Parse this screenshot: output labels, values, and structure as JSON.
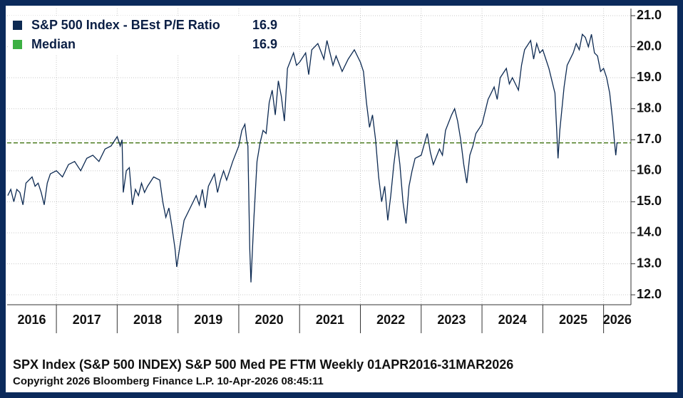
{
  "chart_data": {
    "type": "line",
    "series": [
      {
        "name": "S&P 500 Index - BEst P/E Ratio",
        "color": "#0d2a52",
        "last_value": 16.9,
        "x": [
          2016.2,
          2016.25,
          2016.3,
          2016.35,
          2016.4,
          2016.45,
          2016.5,
          2016.6,
          2016.65,
          2016.7,
          2016.75,
          2016.8,
          2016.85,
          2016.9,
          2017.0,
          2017.1,
          2017.2,
          2017.3,
          2017.4,
          2017.5,
          2017.6,
          2017.7,
          2017.8,
          2017.9,
          2018.0,
          2018.05,
          2018.08,
          2018.1,
          2018.15,
          2018.2,
          2018.25,
          2018.3,
          2018.35,
          2018.4,
          2018.45,
          2018.5,
          2018.6,
          2018.7,
          2018.75,
          2018.8,
          2018.85,
          2018.9,
          2018.95,
          2018.98,
          2019.05,
          2019.1,
          2019.2,
          2019.3,
          2019.35,
          2019.4,
          2019.45,
          2019.5,
          2019.6,
          2019.65,
          2019.7,
          2019.75,
          2019.8,
          2019.9,
          2020.0,
          2020.05,
          2020.1,
          2020.13,
          2020.15,
          2020.18,
          2020.2,
          2020.25,
          2020.3,
          2020.35,
          2020.4,
          2020.45,
          2020.5,
          2020.55,
          2020.6,
          2020.65,
          2020.7,
          2020.75,
          2020.8,
          2020.9,
          2020.95,
          2021.0,
          2021.1,
          2021.15,
          2021.2,
          2021.3,
          2021.4,
          2021.45,
          2021.55,
          2021.6,
          2021.7,
          2021.8,
          2021.9,
          2022.0,
          2022.05,
          2022.1,
          2022.15,
          2022.2,
          2022.25,
          2022.3,
          2022.35,
          2022.4,
          2022.45,
          2022.5,
          2022.55,
          2022.6,
          2022.65,
          2022.7,
          2022.75,
          2022.8,
          2022.85,
          2022.9,
          2023.0,
          2023.1,
          2023.15,
          2023.2,
          2023.3,
          2023.35,
          2023.4,
          2023.5,
          2023.55,
          2023.6,
          2023.65,
          2023.7,
          2023.75,
          2023.8,
          2023.85,
          2023.9,
          2024.0,
          2024.1,
          2024.2,
          2024.25,
          2024.3,
          2024.4,
          2024.45,
          2024.5,
          2024.6,
          2024.65,
          2024.7,
          2024.8,
          2024.85,
          2024.9,
          2024.95,
          2025.0,
          2025.05,
          2025.1,
          2025.2,
          2025.25,
          2025.28,
          2025.35,
          2025.4,
          2025.5,
          2025.55,
          2025.6,
          2025.65,
          2025.7,
          2025.75,
          2025.8,
          2025.85,
          2025.9,
          2025.95,
          2026.0,
          2026.05,
          2026.1,
          2026.15,
          2026.18,
          2026.2,
          2026.22,
          2026.24
        ],
        "values": [
          15.2,
          15.4,
          15.0,
          15.4,
          15.3,
          14.9,
          15.6,
          15.8,
          15.5,
          15.6,
          15.3,
          14.9,
          15.6,
          15.9,
          16.0,
          15.8,
          16.2,
          16.3,
          16.0,
          16.4,
          16.5,
          16.3,
          16.7,
          16.8,
          17.1,
          16.8,
          17.0,
          15.3,
          16.0,
          16.1,
          14.9,
          15.4,
          15.2,
          15.6,
          15.3,
          15.5,
          15.8,
          15.7,
          15.0,
          14.5,
          14.8,
          14.2,
          13.5,
          12.9,
          13.8,
          14.4,
          14.8,
          15.2,
          14.9,
          15.4,
          14.8,
          15.5,
          15.9,
          15.3,
          15.7,
          16.0,
          15.7,
          16.3,
          16.8,
          17.3,
          17.5,
          17.0,
          16.8,
          13.5,
          12.4,
          14.5,
          16.3,
          16.9,
          17.3,
          17.2,
          18.2,
          18.6,
          17.8,
          18.9,
          18.4,
          17.6,
          19.3,
          19.8,
          19.4,
          19.5,
          19.8,
          19.1,
          19.9,
          20.1,
          19.6,
          20.2,
          19.4,
          19.7,
          19.2,
          19.6,
          19.9,
          19.5,
          19.2,
          18.2,
          17.4,
          17.8,
          17.0,
          15.8,
          15.0,
          15.5,
          14.4,
          15.2,
          16.2,
          17.0,
          16.2,
          15.0,
          14.3,
          15.5,
          16.0,
          16.4,
          16.5,
          17.2,
          16.6,
          16.2,
          16.7,
          16.5,
          17.3,
          17.8,
          18.0,
          17.6,
          17.0,
          16.2,
          15.6,
          16.5,
          16.8,
          17.2,
          17.5,
          18.3,
          18.7,
          18.3,
          19.0,
          19.3,
          18.8,
          19.0,
          18.6,
          19.4,
          19.9,
          20.2,
          19.6,
          20.1,
          19.8,
          19.9,
          19.6,
          19.3,
          18.5,
          16.4,
          17.3,
          18.7,
          19.4,
          19.8,
          20.1,
          19.9,
          20.4,
          20.3,
          20.0,
          20.4,
          19.8,
          19.7,
          19.2,
          19.3,
          19.0,
          18.5,
          17.6,
          16.9,
          16.5,
          16.9,
          16.9
        ]
      }
    ],
    "median": {
      "name": "Median",
      "value": 16.9,
      "color": "#3cb043",
      "line_color": "#4a7a1e"
    },
    "ylim": [
      11.68,
      21.23
    ],
    "yticks": [
      {
        "value": 12,
        "label": "12.0"
      },
      {
        "value": 13,
        "label": "13.0"
      },
      {
        "value": 14,
        "label": "14.0"
      },
      {
        "value": 15,
        "label": "15.0"
      },
      {
        "value": 16,
        "label": "16.0"
      },
      {
        "value": 17,
        "label": "17.0"
      },
      {
        "value": 18,
        "label": "18.0"
      },
      {
        "value": 19,
        "label": "19.0"
      },
      {
        "value": 20,
        "label": "20.0"
      },
      {
        "value": 21,
        "label": "21.0"
      }
    ],
    "xlim": [
      2016.19,
      2026.45
    ],
    "xticks": [
      2017,
      2018,
      2019,
      2020,
      2021,
      2022,
      2023,
      2024,
      2025,
      2026
    ],
    "categories": [
      "2016",
      "2017",
      "2018",
      "2019",
      "2020",
      "2021",
      "2022",
      "2023",
      "2024",
      "2025",
      "2026"
    ],
    "grid": true,
    "footer": "SPX Index (S&P 500 INDEX) S&P 500 Med PE FTM Weekly 01APR2016-31MAR2026",
    "copyright": "Copyright 2026 Bloomberg Finance L.P.  10-Apr-2026 08:45:11"
  }
}
